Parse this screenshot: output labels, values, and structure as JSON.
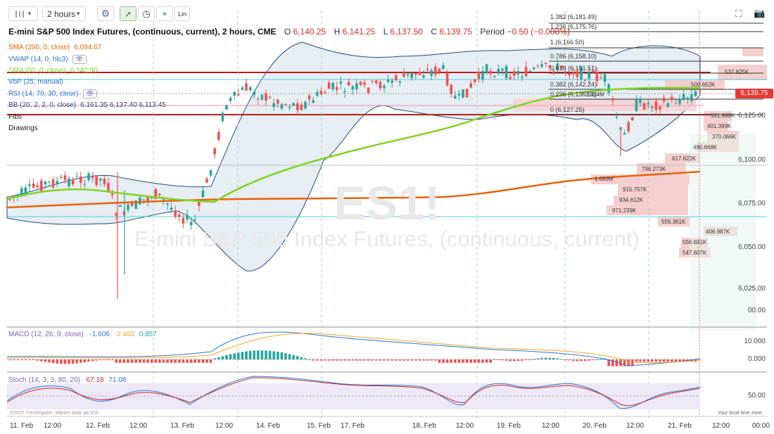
{
  "toolbar": {
    "interval_label": "2 hours",
    "scale_label": "Lin"
  },
  "header": {
    "title": "E-mini S&P 500 Index Futures, (continuous, current), 2 hours, CME",
    "open_key": "O",
    "open_val": "6,140.25",
    "high_key": "H",
    "high_val": "6,141.25",
    "low_key": "L",
    "low_val": "6,137.50",
    "close_key": "C",
    "close_val": "6,139.75",
    "period_key": "Period",
    "period_val": "−0.50 (−0.008%)"
  },
  "indicators": [
    {
      "label": "SMA (200, 0, close)",
      "value": "6,094.67",
      "color": "#e8620a"
    },
    {
      "label": "VWAP (14, 0, hlc3)",
      "value": "",
      "color": "#2b73d6"
    },
    {
      "label": "SMA (50, 0, close)",
      "value": "6,142.90",
      "color": "#7ed321"
    },
    {
      "label": "VbP (25, manual)",
      "value": "",
      "color": "#2b73d6"
    },
    {
      "label": "RSI (14, 70, 30, close)",
      "value": "",
      "color": "#2b73d6"
    },
    {
      "label": "BB (20, 2, 2, 0, close)",
      "value": "6,161.35  6,137.40  6,113.45",
      "color": "#2b4a7a"
    }
  ],
  "extras": {
    "fibs": "Fibs",
    "drawings": "Drawings"
  },
  "price_axis": [
    "6,125.00",
    "6,100.00",
    "6,075.00",
    "6,050.00",
    "6,025.00",
    "00.00"
  ],
  "last_price": "6,139.75",
  "fib_levels": [
    {
      "label": "1.382 (6,181.49)"
    },
    {
      "label": "1.236 (6,175.76)"
    },
    {
      "label": "1 (6,166.50)"
    },
    {
      "label": "0.786 (6,158.10)"
    },
    {
      "label": "0.618 (6,151.51)"
    },
    {
      "label": "0.382 (6,142.24)"
    },
    {
      "label": "0.236 (6,136.51)"
    },
    {
      "label": "0 (6,127.25)"
    }
  ],
  "vbp_labels": [
    "537.825K",
    "500.652K",
    "1.164M",
    "581.898K",
    "401.399K",
    "370.066K",
    "490.668K",
    "617.622K",
    "796.273K",
    "1.089M",
    "915.757K",
    "934.612K",
    "971.239K",
    "559.361K",
    "406.987K",
    "556.691K",
    "547.607K"
  ],
  "watermark": {
    "symbol": "ES1!",
    "name": "E-mini S&P 500 Index Futures, (continuous, current)"
  },
  "macd": {
    "label": "MACD (12, 26, 9, close)",
    "v1": "-1.606",
    "v2": "-2.463",
    "v3": "0.857",
    "axis": [
      "10.000",
      "0.000"
    ]
  },
  "stoch": {
    "label": "Stoch (14, 3, 3, 80, 20)",
    "v1": "67.18",
    "v2": "71.08",
    "axis": [
      "50.00"
    ]
  },
  "copyright": "©2025 TrendSpider. Market data via ICE",
  "timezone": "Your local time zone",
  "time_axis": [
    "11. Feb",
    "12:00",
    "12. Feb",
    "12:00",
    "13. Feb",
    "12:00",
    "14. Feb",
    "15. Feb",
    "17. Feb",
    "18. Feb",
    "12:00",
    "19. Feb",
    "12:00",
    "20. Feb",
    "12:00",
    "21. Feb",
    "12:00",
    "00:00"
  ],
  "colors": {
    "up": "#26a69a",
    "down": "#ef5350",
    "sma200": "#e8620a",
    "sma50": "#7ed321",
    "bb": "#2b4a7a",
    "resistance": "#b71c1c",
    "vbp": "#f4c7c7"
  }
}
